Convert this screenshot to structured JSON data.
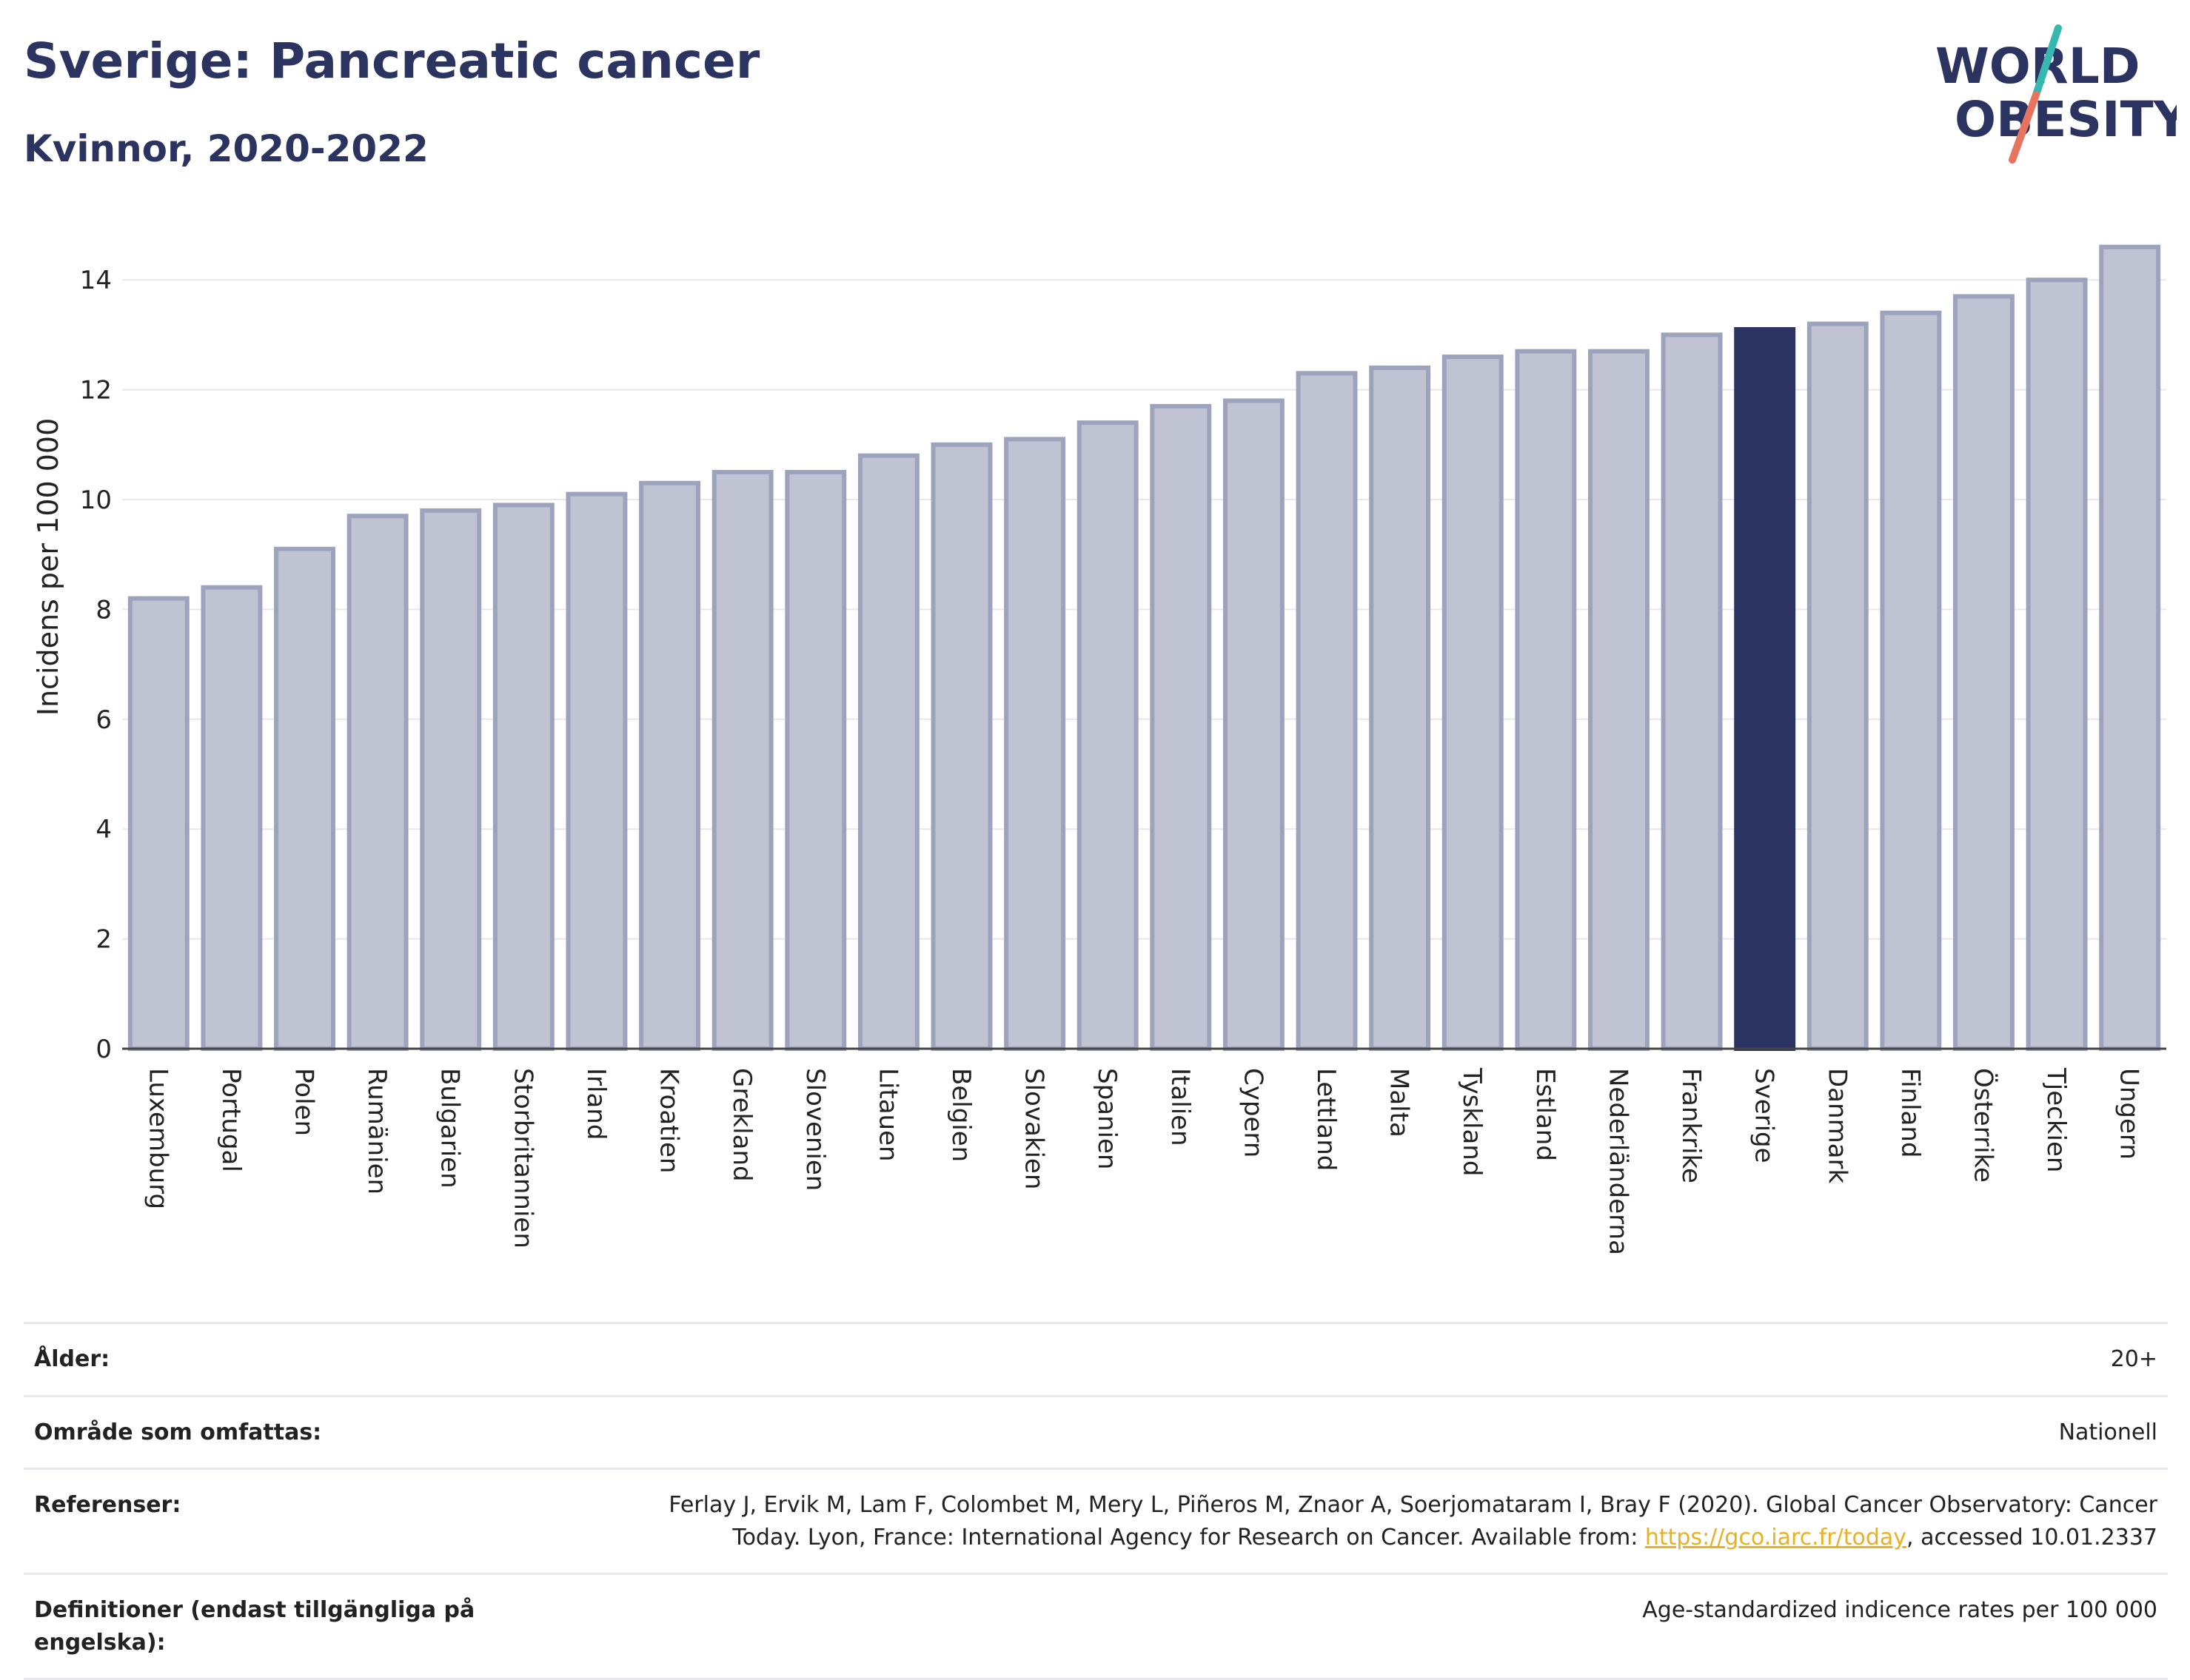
{
  "header": {
    "title": "Sverige: Pancreatic cancer",
    "subtitle": "Kvinnor, 2020-2022"
  },
  "logo": {
    "line1": "WORLD",
    "line2": "OBESITY",
    "text_color": "#2b3461",
    "accent_teal": "#36b7b0",
    "accent_coral": "#e8735f"
  },
  "chart_data": {
    "type": "bar",
    "ylabel": "Incidens per 100 000",
    "ylim": [
      0,
      15
    ],
    "yticks": [
      0,
      2,
      4,
      6,
      8,
      10,
      12,
      14
    ],
    "grid": true,
    "highlight": "Sverige",
    "bar_color": "#bfc3d2",
    "bar_border_color": "#9da3bc",
    "highlight_color": "#2b3461",
    "categories": [
      "Luxemburg",
      "Portugal",
      "Polen",
      "Rumänien",
      "Bulgarien",
      "Storbritannien",
      "Irland",
      "Kroatien",
      "Grekland",
      "Slovenien",
      "Litauen",
      "Belgien",
      "Slovakien",
      "Spanien",
      "Italien",
      "Cypern",
      "Lettland",
      "Malta",
      "Tyskland",
      "Estland",
      "Nederländerna",
      "Frankrike",
      "Sverige",
      "Danmark",
      "Finland",
      "Österrike",
      "Tjeckien",
      "Ungern"
    ],
    "values": [
      8.2,
      8.4,
      9.1,
      9.7,
      9.8,
      9.9,
      10.1,
      10.3,
      10.5,
      10.5,
      10.8,
      11.0,
      11.1,
      11.4,
      11.7,
      11.8,
      12.3,
      12.4,
      12.6,
      12.7,
      12.7,
      13.0,
      13.1,
      13.2,
      13.4,
      13.7,
      14.0,
      14.6
    ]
  },
  "info": {
    "rows": [
      {
        "key": "Ålder:",
        "value": "20+"
      },
      {
        "key": "Område som omfattas:",
        "value": "Nationell"
      },
      {
        "key": "Referenser:",
        "value_line1": "Ferlay J, Ervik M, Lam F, Colombet M, Mery L, Piñeros M, Znaor A, Soerjomataram I, Bray F (2020). Global Cancer Observatory: Cancer",
        "value_line2_pre": "Today. Lyon, France: International Agency for Research on Cancer. Available from: ",
        "link": "https://gco.iarc.fr/today",
        "value_line2_post": ", accessed 10.01.2337"
      },
      {
        "key": "Definitioner (endast tillgängliga på engelska):",
        "value": "Age-standardized indicence rates per 100 000"
      }
    ]
  }
}
